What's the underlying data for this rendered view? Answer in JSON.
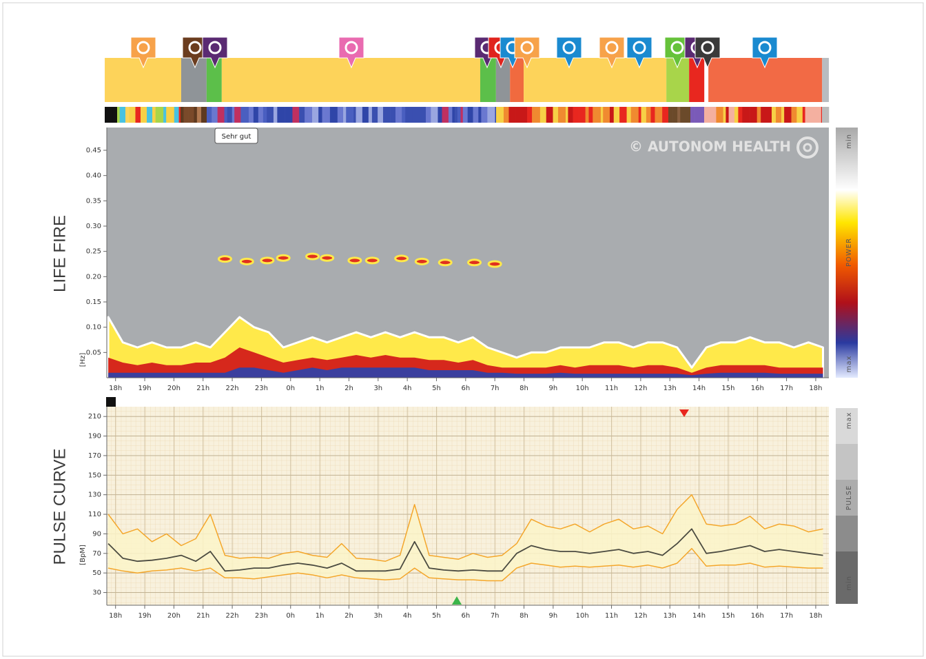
{
  "labels": {
    "tooltip": "Sehr gut",
    "watermark": "© AUTONOM HEALTH"
  },
  "timeline": {
    "xlim": [
      17.7,
      42.45
    ],
    "segments": [
      {
        "start": 17.63,
        "end": 20.25,
        "color": "#fdd35a"
      },
      {
        "start": 20.25,
        "end": 21.12,
        "color": "#8f9498"
      },
      {
        "start": 21.12,
        "end": 21.64,
        "color": "#5cbf4a"
      },
      {
        "start": 21.64,
        "end": 30.5,
        "color": "#fdd35a"
      },
      {
        "start": 30.5,
        "end": 31.04,
        "color": "#5cbf4a"
      },
      {
        "start": 31.04,
        "end": 31.52,
        "color": "#8f9498"
      },
      {
        "start": 31.52,
        "end": 31.99,
        "color": "#f06a3f"
      },
      {
        "start": 31.99,
        "end": 36.88,
        "color": "#fdd35a"
      },
      {
        "start": 36.88,
        "end": 37.66,
        "color": "#a8d54a"
      },
      {
        "start": 37.66,
        "end": 38.18,
        "color": "#e8271f"
      },
      {
        "start": 38.32,
        "end": 42.22,
        "color": "#f26a45"
      },
      {
        "start": 42.22,
        "end": 42.45,
        "color": "#b8bcc0"
      }
    ]
  },
  "chart_data": [
    {
      "type": "heatmap",
      "title": "LIFE FIRE",
      "y_label": "[Hz]",
      "colorbar": [
        "min",
        "POWER",
        "max"
      ],
      "xlim": [
        17.7,
        42.45
      ],
      "ylim": [
        0,
        0.495
      ],
      "xticks": [
        {
          "value": 18,
          "label": "18h"
        },
        {
          "value": 19,
          "label": "19h"
        },
        {
          "value": 20,
          "label": "20h"
        },
        {
          "value": 21,
          "label": "21h"
        },
        {
          "value": 22,
          "label": "22h"
        },
        {
          "value": 23,
          "label": "23h"
        },
        {
          "value": 24,
          "label": "0h"
        },
        {
          "value": 25,
          "label": "1h"
        },
        {
          "value": 26,
          "label": "2h"
        },
        {
          "value": 27,
          "label": "3h"
        },
        {
          "value": 28,
          "label": "4h"
        },
        {
          "value": 29,
          "label": "5h"
        },
        {
          "value": 30,
          "label": "6h"
        },
        {
          "value": 31,
          "label": "7h"
        },
        {
          "value": 32,
          "label": "8h"
        },
        {
          "value": 33,
          "label": "9h"
        },
        {
          "value": 34,
          "label": "10h"
        },
        {
          "value": 35,
          "label": "11h"
        },
        {
          "value": 36,
          "label": "12h"
        },
        {
          "value": 37,
          "label": "13h"
        },
        {
          "value": 38,
          "label": "14h"
        },
        {
          "value": 39,
          "label": "15h"
        },
        {
          "value": 40,
          "label": "16h"
        },
        {
          "value": 41,
          "label": "17h"
        },
        {
          "value": 42,
          "label": "18h"
        }
      ],
      "yticks": [
        0.05,
        {
          "value": 0.1,
          "label": "0.10"
        },
        0.15,
        {
          "value": 0.2,
          "label": "0.20"
        },
        0.25,
        {
          "value": 0.3,
          "label": "0.30"
        },
        0.35,
        {
          "value": 0.4,
          "label": "0.40"
        },
        0.45
      ],
      "x": [
        17.75,
        18.25,
        18.75,
        19.25,
        19.75,
        20.25,
        20.75,
        21.25,
        21.75,
        22.25,
        22.75,
        23.25,
        23.75,
        24.25,
        24.75,
        25.25,
        25.75,
        26.25,
        26.75,
        27.25,
        27.75,
        28.25,
        28.75,
        29.25,
        29.75,
        30.25,
        30.75,
        31.25,
        31.75,
        32.25,
        32.75,
        33.25,
        33.75,
        34.25,
        34.75,
        35.25,
        35.75,
        36.25,
        36.75,
        37.25,
        37.75,
        38.25,
        38.75,
        39.25,
        39.75,
        40.25,
        40.75,
        41.25,
        41.75,
        42.25
      ],
      "layers": [
        {
          "color": "#ffe94a",
          "values": [
            0.12,
            0.07,
            0.06,
            0.07,
            0.06,
            0.06,
            0.07,
            0.06,
            0.09,
            0.12,
            0.1,
            0.09,
            0.06,
            0.07,
            0.08,
            0.07,
            0.08,
            0.09,
            0.08,
            0.09,
            0.08,
            0.09,
            0.08,
            0.08,
            0.07,
            0.08,
            0.06,
            0.05,
            0.04,
            0.05,
            0.05,
            0.06,
            0.06,
            0.06,
            0.07,
            0.07,
            0.06,
            0.07,
            0.07,
            0.06,
            0.02,
            0.06,
            0.07,
            0.07,
            0.08,
            0.07,
            0.07,
            0.06,
            0.07,
            0.06
          ]
        },
        {
          "color": "#d6281c",
          "values": [
            0.04,
            0.03,
            0.025,
            0.03,
            0.025,
            0.025,
            0.03,
            0.03,
            0.04,
            0.06,
            0.05,
            0.04,
            0.03,
            0.035,
            0.04,
            0.035,
            0.04,
            0.045,
            0.04,
            0.045,
            0.04,
            0.04,
            0.035,
            0.035,
            0.03,
            0.035,
            0.025,
            0.02,
            0.02,
            0.02,
            0.02,
            0.025,
            0.02,
            0.025,
            0.025,
            0.025,
            0.02,
            0.025,
            0.025,
            0.02,
            0.01,
            0.02,
            0.025,
            0.025,
            0.025,
            0.025,
            0.02,
            0.02,
            0.02,
            0.02
          ]
        },
        {
          "color": "#3b3f9e",
          "values": [
            0.01,
            0.01,
            0.01,
            0.01,
            0.01,
            0.01,
            0.01,
            0.01,
            0.01,
            0.02,
            0.02,
            0.015,
            0.01,
            0.015,
            0.02,
            0.015,
            0.02,
            0.02,
            0.02,
            0.02,
            0.02,
            0.02,
            0.015,
            0.015,
            0.015,
            0.015,
            0.01,
            0.01,
            0.008,
            0.008,
            0.008,
            0.01,
            0.008,
            0.008,
            0.008,
            0.008,
            0.008,
            0.008,
            0.008,
            0.008,
            0.005,
            0.008,
            0.01,
            0.01,
            0.01,
            0.01,
            0.008,
            0.008,
            0.008,
            0.008
          ]
        }
      ],
      "spots": {
        "color": "#e0301e",
        "x": [
          21.75,
          22.5,
          23.2,
          23.75,
          24.75,
          25.25,
          26.2,
          26.8,
          27.8,
          28.5,
          29.3,
          30.3,
          31.0
        ],
        "y": [
          0.235,
          0.23,
          0.232,
          0.237,
          0.24,
          0.237,
          0.232,
          0.232,
          0.236,
          0.23,
          0.228,
          0.228,
          0.225
        ]
      }
    },
    {
      "type": "line",
      "title": "PULSE CURVE",
      "y_label": "[BpM]",
      "colorbar": [
        "max",
        "PULSE",
        "min"
      ],
      "grid": true,
      "band_color": "#fbf5c9",
      "xlim": [
        17.7,
        42.45
      ],
      "ylim": [
        17,
        220
      ],
      "xticks": [
        {
          "value": 18,
          "label": "18h"
        },
        {
          "value": 19,
          "label": "19h"
        },
        {
          "value": 20,
          "label": "20h"
        },
        {
          "value": 21,
          "label": "21h"
        },
        {
          "value": 22,
          "label": "22h"
        },
        {
          "value": 23,
          "label": "23h"
        },
        {
          "value": 24,
          "label": "0h"
        },
        {
          "value": 25,
          "label": "1h"
        },
        {
          "value": 26,
          "label": "2h"
        },
        {
          "value": 27,
          "label": "3h"
        },
        {
          "value": 28,
          "label": "4h"
        },
        {
          "value": 29,
          "label": "5h"
        },
        {
          "value": 30,
          "label": "6h"
        },
        {
          "value": 31,
          "label": "7h"
        },
        {
          "value": 32,
          "label": "8h"
        },
        {
          "value": 33,
          "label": "9h"
        },
        {
          "value": 34,
          "label": "10h"
        },
        {
          "value": 35,
          "label": "11h"
        },
        {
          "value": 36,
          "label": "12h"
        },
        {
          "value": 37,
          "label": "13h"
        },
        {
          "value": 38,
          "label": "14h"
        },
        {
          "value": 39,
          "label": "15h"
        },
        {
          "value": 40,
          "label": "16h"
        },
        {
          "value": 41,
          "label": "17h"
        },
        {
          "value": 42,
          "label": "18h"
        }
      ],
      "yticks": [
        30,
        50,
        70,
        90,
        110,
        130,
        150,
        170,
        190,
        210
      ],
      "x": [
        17.75,
        18.25,
        18.75,
        19.25,
        19.75,
        20.25,
        20.75,
        21.25,
        21.75,
        22.25,
        22.75,
        23.25,
        23.75,
        24.25,
        24.75,
        25.25,
        25.75,
        26.25,
        26.75,
        27.25,
        27.75,
        28.25,
        28.75,
        29.25,
        29.75,
        30.25,
        30.75,
        31.25,
        31.75,
        32.25,
        32.75,
        33.25,
        33.75,
        34.25,
        34.75,
        35.25,
        35.75,
        36.25,
        36.75,
        37.25,
        37.75,
        38.25,
        38.75,
        39.25,
        39.75,
        40.25,
        40.75,
        41.25,
        41.75,
        42.25
      ],
      "series": [
        {
          "color": "#f4a62a",
          "values": [
            110,
            90,
            95,
            82,
            90,
            78,
            85,
            110,
            68,
            65,
            66,
            65,
            70,
            72,
            68,
            66,
            80,
            65,
            64,
            62,
            68,
            120,
            68,
            66,
            64,
            70,
            66,
            68,
            80,
            105,
            98,
            95,
            100,
            92,
            100,
            105,
            95,
            98,
            90,
            115,
            130,
            100,
            98,
            100,
            108,
            95,
            100,
            98,
            92,
            95
          ]
        },
        {
          "color": "#4a4a40",
          "values": [
            80,
            65,
            62,
            63,
            65,
            68,
            62,
            72,
            52,
            53,
            55,
            55,
            58,
            60,
            58,
            55,
            60,
            52,
            52,
            52,
            54,
            82,
            55,
            53,
            52,
            53,
            52,
            52,
            70,
            78,
            74,
            72,
            72,
            70,
            72,
            74,
            70,
            72,
            68,
            80,
            95,
            70,
            72,
            75,
            78,
            72,
            74,
            72,
            70,
            68
          ]
        },
        {
          "color": "#f4a62a",
          "values": [
            55,
            52,
            50,
            52,
            53,
            55,
            52,
            55,
            45,
            45,
            44,
            46,
            48,
            50,
            48,
            45,
            48,
            45,
            44,
            43,
            44,
            55,
            45,
            44,
            43,
            43,
            42,
            42,
            55,
            60,
            58,
            56,
            57,
            56,
            57,
            58,
            56,
            58,
            55,
            60,
            75,
            57,
            58,
            58,
            60,
            56,
            57,
            56,
            55,
            55
          ]
        }
      ]
    }
  ]
}
